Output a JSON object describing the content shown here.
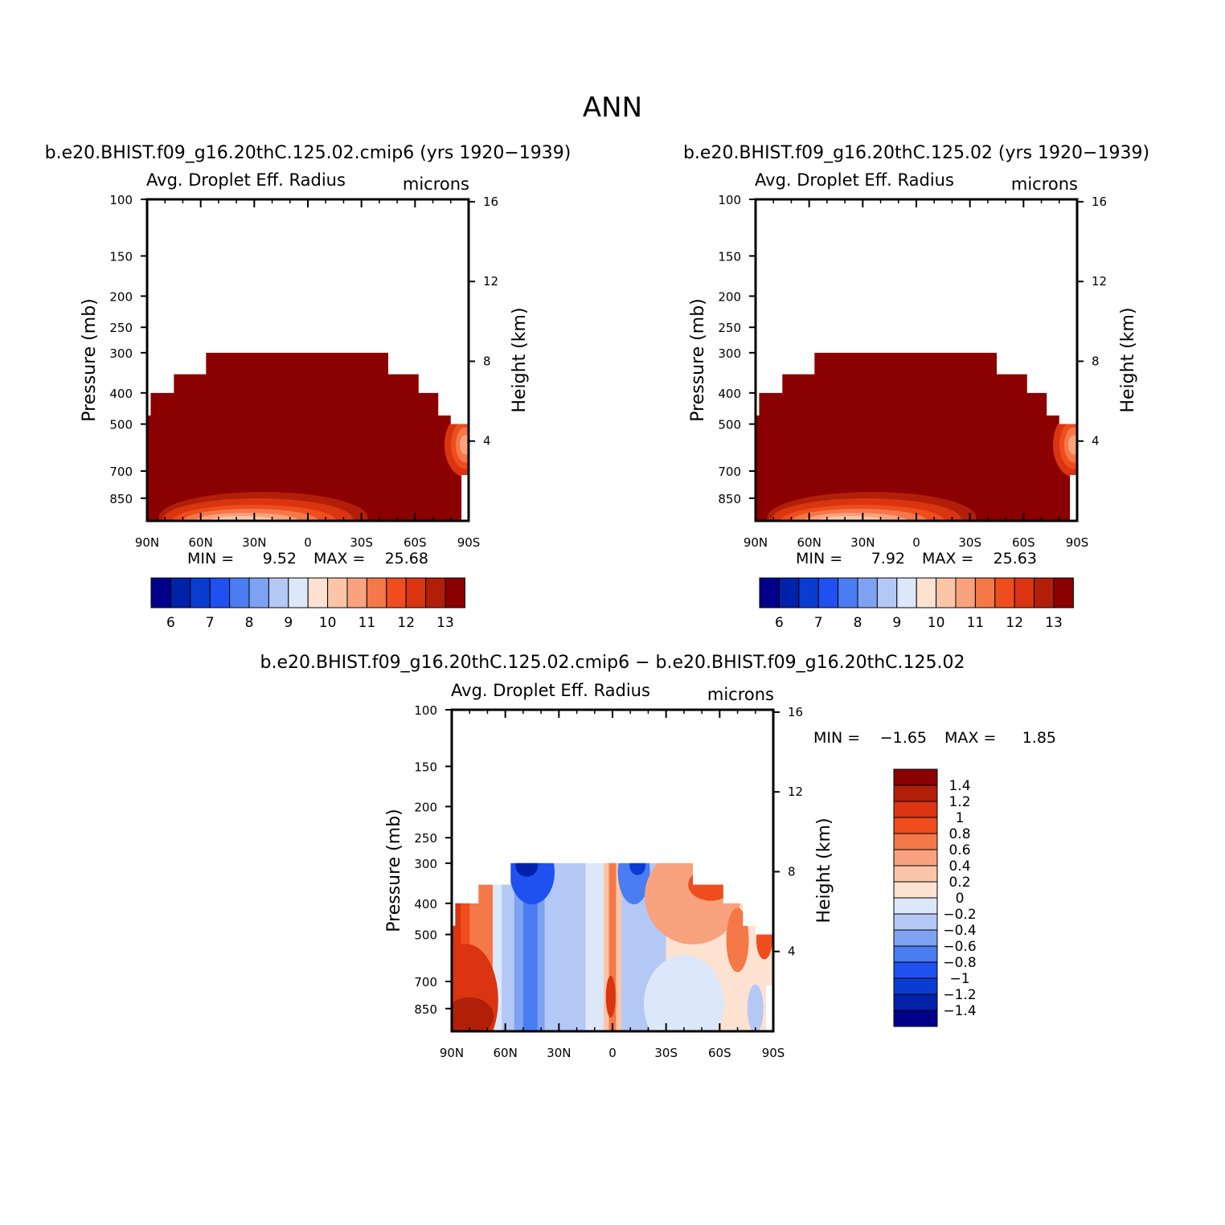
{
  "page_title": "ANN",
  "colors": {
    "dark_red": "#8b0000",
    "frame": "#000000"
  },
  "chart_data": [
    {
      "type": "heatmap",
      "id": "panel-left",
      "case_title": "b.e20.BHIST.f09_g16.20thC.125.02.cmip6 (yrs 1920−1939)",
      "variable": "Avg. Droplet Eff. Radius",
      "units": "microns",
      "ylabel": "Pressure (mb)",
      "ylabel_right": "Height (km)",
      "x_ticks": [
        "90N",
        "60N",
        "30N",
        "0",
        "30S",
        "60S",
        "90S"
      ],
      "y_ticks": [
        "100",
        "150",
        "200",
        "250",
        "300",
        "400",
        "500",
        "700",
        "850"
      ],
      "y_ticks_right": [
        "16",
        "12",
        "8",
        "4"
      ],
      "min_label": "MIN =",
      "min_value": "9.52",
      "max_label": "MAX =",
      "max_value": "25.68",
      "colorbar": {
        "orientation": "horizontal",
        "labels": [
          "6",
          "7",
          "8",
          "9",
          "10",
          "11",
          "12",
          "13"
        ],
        "colors": [
          "#00008b",
          "#0022aa",
          "#0a3cd2",
          "#1f50f0",
          "#4a7cf2",
          "#7da2f2",
          "#b4c8f6",
          "#dce8fa",
          "#fde2d2",
          "#fbc5a8",
          "#f8a27e",
          "#f47848",
          "#ef4d1e",
          "#da3410",
          "#b21f08",
          "#8b0000"
        ]
      }
    },
    {
      "type": "heatmap",
      "id": "panel-right",
      "case_title": "b.e20.BHIST.f09_g16.20thC.125.02 (yrs 1920−1939)",
      "variable": "Avg. Droplet Eff. Radius",
      "units": "microns",
      "ylabel": "Pressure (mb)",
      "ylabel_right": "Height (km)",
      "x_ticks": [
        "90N",
        "60N",
        "30N",
        "0",
        "30S",
        "60S",
        "90S"
      ],
      "y_ticks": [
        "100",
        "150",
        "200",
        "250",
        "300",
        "400",
        "500",
        "700",
        "850"
      ],
      "y_ticks_right": [
        "16",
        "12",
        "8",
        "4"
      ],
      "min_label": "MIN =",
      "min_value": "7.92",
      "max_label": "MAX =",
      "max_value": "25.63",
      "colorbar": {
        "orientation": "horizontal",
        "labels": [
          "6",
          "7",
          "8",
          "9",
          "10",
          "11",
          "12",
          "13"
        ],
        "colors": [
          "#00008b",
          "#0022aa",
          "#0a3cd2",
          "#1f50f0",
          "#4a7cf2",
          "#7da2f2",
          "#b4c8f6",
          "#dce8fa",
          "#fde2d2",
          "#fbc5a8",
          "#f8a27e",
          "#f47848",
          "#ef4d1e",
          "#da3410",
          "#b21f08",
          "#8b0000"
        ]
      }
    },
    {
      "type": "heatmap",
      "id": "panel-diff",
      "case_title": "b.e20.BHIST.f09_g16.20thC.125.02.cmip6 − b.e20.BHIST.f09_g16.20thC.125.02",
      "variable": "Avg. Droplet Eff. Radius",
      "units": "microns",
      "ylabel": "Pressure (mb)",
      "ylabel_right": "Height (km)",
      "x_ticks": [
        "90N",
        "60N",
        "30N",
        "0",
        "30S",
        "60S",
        "90S"
      ],
      "y_ticks": [
        "100",
        "150",
        "200",
        "250",
        "300",
        "400",
        "500",
        "700",
        "850"
      ],
      "y_ticks_right": [
        "16",
        "12",
        "8",
        "4"
      ],
      "min_label": "MIN =",
      "min_value": "−1.65",
      "max_label": "MAX =",
      "max_value": "1.85",
      "colorbar": {
        "orientation": "vertical",
        "labels": [
          "1.4",
          "1.2",
          "1",
          "0.8",
          "0.6",
          "0.4",
          "0.2",
          "0",
          "−0.2",
          "−0.4",
          "−0.6",
          "−0.8",
          "−1",
          "−1.2",
          "−1.4"
        ],
        "colors": [
          "#8b0000",
          "#b21f08",
          "#da3410",
          "#ef4d1e",
          "#f47848",
          "#f8a27e",
          "#fbc5a8",
          "#fde2d2",
          "#dce8fa",
          "#b4c8f6",
          "#7da2f2",
          "#4a7cf2",
          "#1f50f0",
          "#0a3cd2",
          "#0022aa",
          "#00008b"
        ]
      }
    }
  ]
}
